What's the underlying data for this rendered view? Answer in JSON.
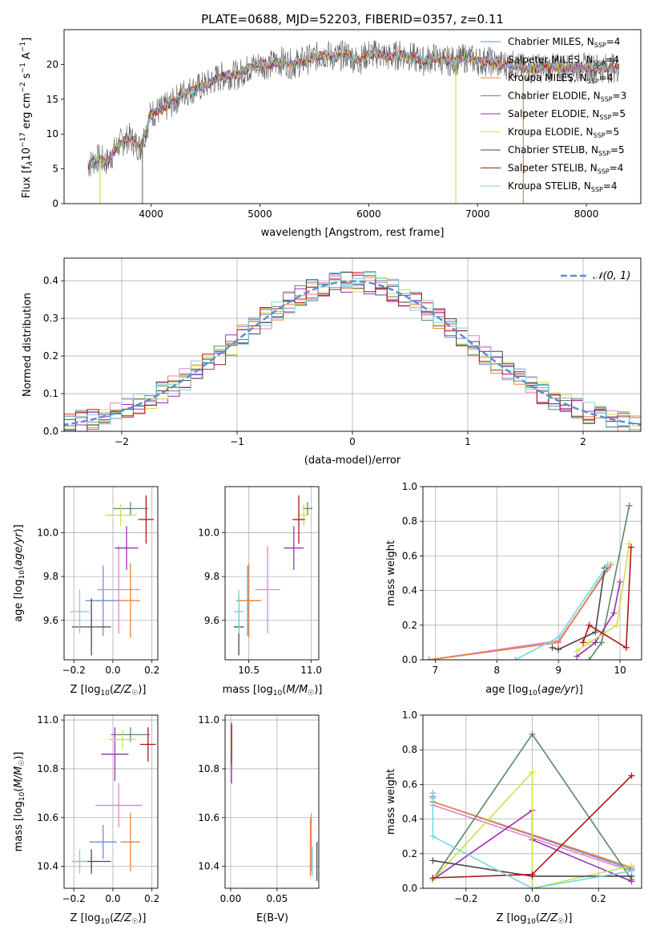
{
  "colors": {
    "grid": "#b0b0b0",
    "series": [
      "#7f7f7f",
      "#d62728",
      "#ff7f0e",
      "#2ca02c",
      "#9467bd",
      "#bcbd22",
      "#555555",
      "#b22222",
      "#6fd3e0"
    ]
  },
  "chart_data": [
    {
      "id": "spectrum",
      "type": "line",
      "title": "PLATE=0688, MJD=52203, FIBERID=0357, z=0.11",
      "xlabel": "wavelength [Angstrom, rest frame]",
      "ylabel": "Flux [f_λ10^-17 erg cm^-2 s^-1 A^-1]",
      "xlim": [
        3200,
        8500
      ],
      "ylim": [
        0,
        25
      ],
      "xticks": [
        4000,
        5000,
        6000,
        7000,
        8000
      ],
      "yticks": [
        0,
        5,
        10,
        15,
        20
      ],
      "grid": false,
      "legend_position": "right",
      "legend": [
        {
          "label": "Chabrier MILES, N_SSP=4",
          "color": "#6a8fd8"
        },
        {
          "label": "Salpeter MILES, N_SSP=4",
          "color": "#e97fcb"
        },
        {
          "label": "Kroupa MILES, N_SSP=4",
          "color": "#e8843a"
        },
        {
          "label": "Chabrier ELODIE, N_SSP=3",
          "color": "#5b8a64"
        },
        {
          "label": "Salpeter ELODIE, N_SSP=5",
          "color": "#9b2fb5"
        },
        {
          "label": "Kroupa ELODIE, N_SSP=5",
          "color": "#cfe04a"
        },
        {
          "label": "Chabrier STELIB, N_SSP=5",
          "color": "#4a4a4a"
        },
        {
          "label": "Salpeter STELIB, N_SSP=4",
          "color": "#b01515"
        },
        {
          "label": "Kroupa STELIB, N_SSP=4",
          "color": "#74d6e3"
        }
      ],
      "series": [
        {
          "x": [
            3420,
            3500,
            3600,
            3700,
            3800,
            3900,
            4000,
            4100,
            4200,
            4300,
            4400,
            4500,
            4600,
            4700,
            4800,
            4900,
            5000,
            5100,
            5200,
            5300,
            5400,
            5500,
            5600,
            5700,
            5800,
            5900,
            6000,
            6100,
            6200,
            6300,
            6400,
            6500,
            6600,
            6700,
            6800,
            6900,
            7000,
            7100,
            7200,
            7300,
            7400,
            7600,
            7800,
            8000,
            8200
          ],
          "y": [
            5.5,
            6.5,
            6.0,
            8.5,
            9.5,
            8.0,
            13.0,
            13.5,
            14.5,
            16.0,
            16.5,
            17.0,
            18.0,
            18.5,
            18.5,
            19.5,
            20.0,
            20.0,
            20.5,
            20.0,
            20.5,
            21.0,
            21.5,
            21.0,
            21.5,
            20.5,
            21.5,
            21.5,
            21.0,
            21.5,
            21.0,
            20.5,
            21.0,
            20.5,
            20.5,
            21.0,
            20.5,
            20.5,
            20.0,
            20.0,
            19.5,
            19.5,
            19.5,
            19.5,
            19.5
          ]
        }
      ],
      "noise_drops": [
        {
          "x": 3530,
          "y": 0.0,
          "label": ""
        },
        {
          "x": 3920,
          "y": 0.0,
          "label": ""
        },
        {
          "x": 6800,
          "y": 0.0,
          "label": ""
        },
        {
          "x": 7420,
          "y": 0.0,
          "label": ""
        }
      ]
    },
    {
      "id": "residuals",
      "type": "line",
      "xlabel": "(data-model)/error",
      "ylabel": "Normed distribution",
      "xlim": [
        -2.5,
        2.5
      ],
      "ylim": [
        0,
        0.46
      ],
      "xticks": [
        -2,
        -1,
        0,
        1,
        2
      ],
      "yticks": [
        0.0,
        0.1,
        0.2,
        0.3,
        0.4
      ],
      "grid": true,
      "legend_position": "top-right",
      "legend": [
        {
          "label": "𝒩(0, 1)",
          "color": "#5b8ed6",
          "style": "dashed"
        }
      ],
      "gaussian": {
        "mean": 0,
        "sigma": 1
      }
    },
    {
      "id": "age_vs_Z",
      "type": "scatter",
      "xlabel": "Z [log10(Z/Z☉)]",
      "ylabel": "age  [log10(age/yr)]",
      "xlim": [
        -0.25,
        0.23
      ],
      "ylim": [
        9.42,
        10.21
      ],
      "xticks": [
        -0.2,
        0.0,
        0.2
      ],
      "yticks": [
        9.6,
        9.8,
        10.0
      ],
      "grid": true,
      "points": [
        {
          "x": -0.05,
          "y": 9.69,
          "xerr": 0.09,
          "yerr": 0.16
        },
        {
          "x": 0.03,
          "y": 9.74,
          "xerr": 0.11,
          "yerr": 0.2
        },
        {
          "x": 0.09,
          "y": 9.69,
          "xerr": 0.05,
          "yerr": 0.17
        },
        {
          "x": 0.09,
          "y": 10.11,
          "xerr": 0.09,
          "yerr": 0.03
        },
        {
          "x": 0.07,
          "y": 9.93,
          "xerr": 0.06,
          "yerr": 0.1
        },
        {
          "x": 0.04,
          "y": 10.08,
          "xerr": 0.08,
          "yerr": 0.05
        },
        {
          "x": -0.11,
          "y": 9.57,
          "xerr": 0.1,
          "yerr": 0.13
        },
        {
          "x": 0.17,
          "y": 10.06,
          "xerr": 0.04,
          "yerr": 0.11
        },
        {
          "x": -0.17,
          "y": 9.64,
          "xerr": 0.05,
          "yerr": 0.1
        }
      ]
    },
    {
      "id": "age_vs_mass",
      "type": "scatter",
      "xlabel": "mass [log10(M/M☉)]",
      "ylabel": "",
      "xlim": [
        10.31,
        11.06
      ],
      "ylim": [
        9.42,
        10.21
      ],
      "xticks": [
        10.5,
        11.0
      ],
      "yticks": [
        9.6,
        9.8,
        10.0
      ],
      "grid": true,
      "points": [
        {
          "x": 10.49,
          "y": 9.69,
          "xerr": 0.08,
          "yerr": 0.16
        },
        {
          "x": 10.65,
          "y": 9.74,
          "xerr": 0.1,
          "yerr": 0.2
        },
        {
          "x": 10.5,
          "y": 9.69,
          "xerr": 0.1,
          "yerr": 0.17
        },
        {
          "x": 10.97,
          "y": 10.11,
          "xerr": 0.04,
          "yerr": 0.03
        },
        {
          "x": 10.86,
          "y": 9.93,
          "xerr": 0.08,
          "yerr": 0.1
        },
        {
          "x": 10.94,
          "y": 10.08,
          "xerr": 0.04,
          "yerr": 0.05
        },
        {
          "x": 10.42,
          "y": 9.57,
          "xerr": 0.04,
          "yerr": 0.13
        },
        {
          "x": 10.9,
          "y": 10.06,
          "xerr": 0.05,
          "yerr": 0.11
        },
        {
          "x": 10.42,
          "y": 9.64,
          "xerr": 0.04,
          "yerr": 0.1
        }
      ]
    },
    {
      "id": "weight_vs_age",
      "type": "line",
      "xlabel": "age  [log10(age/yr)]",
      "ylabel": "mass weight",
      "xlim": [
        6.8,
        10.35
      ],
      "ylim": [
        0,
        1.0
      ],
      "xticks": [
        7,
        8,
        9,
        10
      ],
      "yticks": [
        0.0,
        0.2,
        0.4,
        0.6,
        0.8,
        1.0
      ],
      "grid": true,
      "series": [
        {
          "x": [
            6.9,
            9.0,
            9.8
          ],
          "y": [
            0.0,
            0.1,
            0.53
          ]
        },
        {
          "x": [
            6.9,
            9.0,
            9.8
          ],
          "y": [
            0.0,
            0.11,
            0.52
          ]
        },
        {
          "x": [
            6.9,
            9.0,
            9.85
          ],
          "y": [
            0.0,
            0.1,
            0.55
          ]
        },
        {
          "x": [
            9.5,
            9.7,
            10.15
          ],
          "y": [
            0.0,
            0.1,
            0.89
          ]
        },
        {
          "x": [
            9.3,
            9.6,
            9.9,
            10.0
          ],
          "y": [
            0.02,
            0.1,
            0.27,
            0.45
          ]
        },
        {
          "x": [
            9.3,
            9.5,
            9.95,
            10.15
          ],
          "y": [
            0.05,
            0.1,
            0.2,
            0.67
          ]
        },
        {
          "x": [
            8.9,
            9.0,
            9.6,
            9.75
          ],
          "y": [
            0.07,
            0.06,
            0.16,
            0.53
          ]
        },
        {
          "x": [
            9.4,
            9.5,
            10.1,
            10.18
          ],
          "y": [
            0.1,
            0.2,
            0.07,
            0.65
          ]
        },
        {
          "x": [
            8.3,
            9.0,
            9.8
          ],
          "y": [
            0.0,
            0.13,
            0.55
          ]
        }
      ]
    },
    {
      "id": "mass_vs_Z",
      "type": "scatter",
      "xlabel": "Z [log10(Z/Z☉)]",
      "ylabel": "mass [log10(M/M☉)]",
      "xlim": [
        -0.25,
        0.23
      ],
      "ylim": [
        10.31,
        11.02
      ],
      "xticks": [
        -0.2,
        0.0,
        0.2
      ],
      "yticks": [
        10.4,
        10.6,
        10.8,
        11.0
      ],
      "grid": true,
      "points": [
        {
          "x": -0.05,
          "y": 10.5,
          "xerr": 0.07,
          "yerr": 0.07
        },
        {
          "x": 0.03,
          "y": 10.65,
          "xerr": 0.12,
          "yerr": 0.09
        },
        {
          "x": 0.09,
          "y": 10.5,
          "xerr": 0.05,
          "yerr": 0.12
        },
        {
          "x": 0.09,
          "y": 10.94,
          "xerr": 0.1,
          "yerr": 0.03
        },
        {
          "x": 0.01,
          "y": 10.86,
          "xerr": 0.07,
          "yerr": 0.11
        },
        {
          "x": 0.05,
          "y": 10.92,
          "xerr": 0.07,
          "yerr": 0.04
        },
        {
          "x": -0.11,
          "y": 10.42,
          "xerr": 0.1,
          "yerr": 0.05
        },
        {
          "x": 0.18,
          "y": 10.9,
          "xerr": 0.04,
          "yerr": 0.07
        },
        {
          "x": -0.17,
          "y": 10.42,
          "xerr": 0.04,
          "yerr": 0.05
        }
      ]
    },
    {
      "id": "mass_vs_ebv",
      "type": "scatter",
      "xlabel": "E(B-V)",
      "ylabel": "",
      "xlim": [
        -0.006,
        0.095
      ],
      "ylim": [
        10.31,
        11.02
      ],
      "xticks": [
        0.0,
        0.05
      ],
      "yticks": [
        10.4,
        10.6,
        10.8,
        11.0
      ],
      "grid": true,
      "points": [
        {
          "x": 0.086,
          "y": 10.43,
          "xerr": 0,
          "yerr": 0.07
        },
        {
          "x": 0.087,
          "y": 10.5,
          "xerr": 0,
          "yerr": 0.12
        },
        {
          "x": 0.086,
          "y": 10.48,
          "xerr": 0,
          "yerr": 0.12
        },
        {
          "x": 0.001,
          "y": 10.93,
          "xerr": 0,
          "yerr": 0.06
        },
        {
          "x": 0.001,
          "y": 10.86,
          "xerr": 0,
          "yerr": 0.12
        },
        {
          "x": 0.001,
          "y": 10.92,
          "xerr": 0,
          "yerr": 0.05
        },
        {
          "x": 0.093,
          "y": 10.42,
          "xerr": 0,
          "yerr": 0.08
        },
        {
          "x": 0.001,
          "y": 10.9,
          "xerr": 0,
          "yerr": 0.08
        },
        {
          "x": 0.088,
          "y": 10.42,
          "xerr": 0,
          "yerr": 0.06
        }
      ]
    },
    {
      "id": "weight_vs_Z",
      "type": "line",
      "xlabel": "Z [log10(Z/Z☉)]",
      "ylabel": "mass weight",
      "xlim": [
        -0.33,
        0.33
      ],
      "ylim": [
        0,
        1.0
      ],
      "xticks": [
        -0.2,
        0.0,
        0.2
      ],
      "yticks": [
        0.0,
        0.2,
        0.4,
        0.6,
        0.8,
        1.0
      ],
      "grid": true,
      "series": [
        {
          "x": [
            -0.3,
            -0.3,
            0.3
          ],
          "y": [
            0.53,
            0.5,
            0.11
          ]
        },
        {
          "x": [
            -0.3,
            -0.3,
            0.3
          ],
          "y": [
            0.52,
            0.48,
            0.1
          ]
        },
        {
          "x": [
            -0.3,
            -0.3,
            0.3
          ],
          "y": [
            0.55,
            0.5,
            0.12
          ]
        },
        {
          "x": [
            -0.3,
            0.0,
            0.3
          ],
          "y": [
            0.05,
            0.89,
            0.05
          ]
        },
        {
          "x": [
            -0.3,
            0.0,
            0.0,
            0.3
          ],
          "y": [
            0.05,
            0.45,
            0.28,
            0.04
          ]
        },
        {
          "x": [
            -0.3,
            0.0,
            0.0,
            0.3
          ],
          "y": [
            0.05,
            0.67,
            0.0,
            0.13
          ]
        },
        {
          "x": [
            -0.3,
            0.0,
            0.3
          ],
          "y": [
            0.16,
            0.07,
            0.07
          ]
        },
        {
          "x": [
            -0.3,
            0.0,
            0.3
          ],
          "y": [
            0.06,
            0.08,
            0.65
          ]
        },
        {
          "x": [
            -0.3,
            -0.3,
            0.0,
            0.3
          ],
          "y": [
            0.55,
            0.3,
            0.0,
            0.1
          ]
        }
      ]
    }
  ]
}
